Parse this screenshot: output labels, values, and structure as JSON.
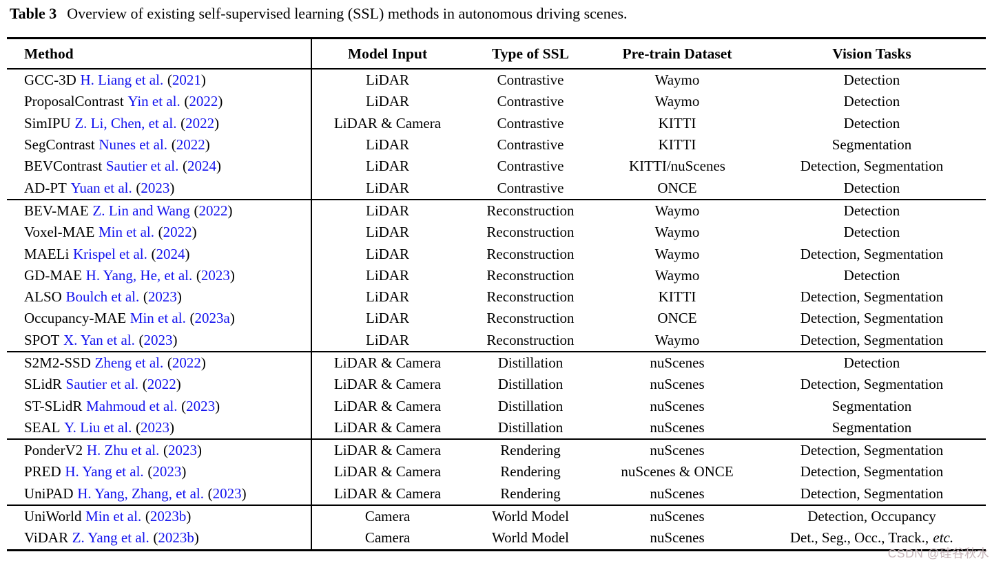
{
  "title": {
    "label": "Table 3",
    "text": "Overview of existing self-supervised learning (SSL) methods in autonomous driving scenes."
  },
  "colors": {
    "link_blue": "#1212ee",
    "text": "#000000",
    "watermark": "#c8b7bb"
  },
  "punct": {
    "open": "(",
    "close": ")"
  },
  "watermark": "CSDN @硅谷秋水",
  "table": {
    "columns": [
      "Method",
      "Model Input",
      "Type of SSL",
      "Pre-train Dataset",
      "Vision Tasks"
    ],
    "groups": [
      {
        "rows": [
          {
            "method": "GCC-3D",
            "cite": "H. Liang et al.",
            "year": "2021",
            "input": "LiDAR",
            "ssl": "Contrastive",
            "dataset": "Waymo",
            "tasks": "Detection"
          },
          {
            "method": "ProposalContrast",
            "cite": "Yin et al.",
            "year": "2022",
            "input": "LiDAR",
            "ssl": "Contrastive",
            "dataset": "Waymo",
            "tasks": "Detection"
          },
          {
            "method": "SimIPU",
            "cite": "Z. Li, Chen, et al.",
            "year": "2022",
            "input": "LiDAR & Camera",
            "ssl": "Contrastive",
            "dataset": "KITTI",
            "tasks": "Detection"
          },
          {
            "method": "SegContrast",
            "cite": "Nunes et al.",
            "year": "2022",
            "input": "LiDAR",
            "ssl": "Contrastive",
            "dataset": "KITTI",
            "tasks": "Segmentation"
          },
          {
            "method": "BEVContrast",
            "cite": "Sautier et al.",
            "year": "2024",
            "input": "LiDAR",
            "ssl": "Contrastive",
            "dataset": "KITTI/nuScenes",
            "tasks": "Detection, Segmentation"
          },
          {
            "method": "AD-PT",
            "cite": "Yuan et al.",
            "year": "2023",
            "input": "LiDAR",
            "ssl": "Contrastive",
            "dataset": "ONCE",
            "tasks": "Detection"
          }
        ]
      },
      {
        "rows": [
          {
            "method": "BEV-MAE",
            "cite": "Z. Lin and Wang",
            "year": "2022",
            "input": "LiDAR",
            "ssl": "Reconstruction",
            "dataset": "Waymo",
            "tasks": "Detection"
          },
          {
            "method": "Voxel-MAE",
            "cite": "Min et al.",
            "year": "2022",
            "input": "LiDAR",
            "ssl": "Reconstruction",
            "dataset": "Waymo",
            "tasks": "Detection"
          },
          {
            "method": "MAELi",
            "cite": "Krispel et al.",
            "year": "2024",
            "input": "LiDAR",
            "ssl": "Reconstruction",
            "dataset": "Waymo",
            "tasks": "Detection, Segmentation"
          },
          {
            "method": "GD-MAE",
            "cite": "H. Yang, He, et al.",
            "year": "2023",
            "input": "LiDAR",
            "ssl": "Reconstruction",
            "dataset": "Waymo",
            "tasks": "Detection"
          },
          {
            "method": "ALSO",
            "cite": "Boulch et al.",
            "year": "2023",
            "input": "LiDAR",
            "ssl": "Reconstruction",
            "dataset": "KITTI",
            "tasks": "Detection, Segmentation"
          },
          {
            "method": "Occupancy-MAE",
            "cite": "Min et al.",
            "year": "2023a",
            "input": "LiDAR",
            "ssl": "Reconstruction",
            "dataset": "ONCE",
            "tasks": "Detection, Segmentation"
          },
          {
            "method": "SPOT",
            "cite": "X. Yan et al.",
            "year": "2023",
            "input": "LiDAR",
            "ssl": "Reconstruction",
            "dataset": "Waymo",
            "tasks": "Detection, Segmentation"
          }
        ]
      },
      {
        "rows": [
          {
            "method": "S2M2-SSD",
            "cite": "Zheng et al.",
            "year": "2022",
            "input": "LiDAR & Camera",
            "ssl": "Distillation",
            "dataset": "nuScenes",
            "tasks": "Detection"
          },
          {
            "method": "SLidR",
            "cite": "Sautier et al.",
            "year": "2022",
            "input": "LiDAR & Camera",
            "ssl": "Distillation",
            "dataset": "nuScenes",
            "tasks": "Detection, Segmentation"
          },
          {
            "method": "ST-SLidR",
            "cite": "Mahmoud et al.",
            "year": "2023",
            "input": "LiDAR & Camera",
            "ssl": "Distillation",
            "dataset": "nuScenes",
            "tasks": "Segmentation"
          },
          {
            "method": "SEAL",
            "cite": "Y. Liu et al.",
            "year": "2023",
            "input": "LiDAR & Camera",
            "ssl": "Distillation",
            "dataset": "nuScenes",
            "tasks": "Segmentation"
          }
        ]
      },
      {
        "rows": [
          {
            "method": "PonderV2",
            "cite": "H. Zhu et al.",
            "year": "2023",
            "input": "LiDAR & Camera",
            "ssl": "Rendering",
            "dataset": "nuScenes",
            "tasks": "Detection, Segmentation"
          },
          {
            "method": "PRED",
            "cite": "H. Yang et al.",
            "year": "2023",
            "input": "LiDAR & Camera",
            "ssl": "Rendering",
            "dataset": "nuScenes & ONCE",
            "tasks": "Detection, Segmentation"
          },
          {
            "method": "UniPAD",
            "cite": "H. Yang, Zhang, et al.",
            "year": "2023",
            "input": "LiDAR & Camera",
            "ssl": "Rendering",
            "dataset": "nuScenes",
            "tasks": "Detection, Segmentation"
          }
        ]
      },
      {
        "rows": [
          {
            "method": "UniWorld",
            "cite": "Min et al.",
            "year": "2023b",
            "input": "Camera",
            "ssl": "World Model",
            "dataset": "nuScenes",
            "tasks": "Detection, Occupancy"
          },
          {
            "method": "ViDAR",
            "cite": "Z. Yang et al.",
            "year": "2023b",
            "input": "Camera",
            "ssl": "World Model",
            "dataset": "nuScenes",
            "tasks": "Det., Seg., Occ., Track.,",
            "tasks_etc": "etc."
          }
        ]
      }
    ]
  }
}
